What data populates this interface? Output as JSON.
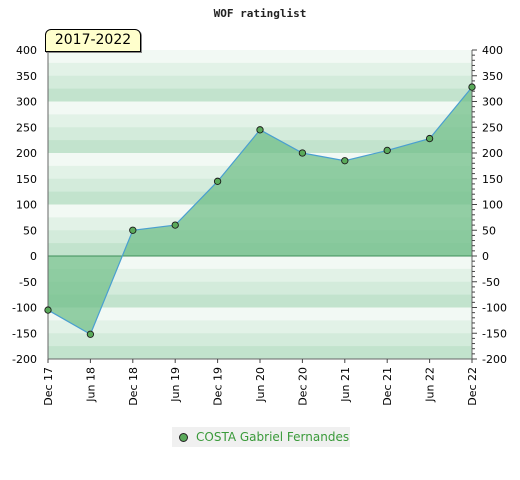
{
  "chart_data": {
    "type": "area",
    "title": "WOF ratinglist",
    "period_label": "2017-2022",
    "categories": [
      "Dec 17",
      "Jun 18",
      "Dec 18",
      "Jun 19",
      "Dec 19",
      "Jun 20",
      "Dec 20",
      "Jun 21",
      "Dec 21",
      "Jun 22",
      "Dec 22"
    ],
    "series": [
      {
        "name": "COSTA Gabriel Fernandes",
        "values": [
          -105,
          -152,
          50,
          60,
          145,
          245,
          200,
          185,
          205,
          228,
          328
        ]
      }
    ],
    "y_ticks": [
      400,
      350,
      300,
      250,
      200,
      150,
      100,
      50,
      0,
      -50,
      -100,
      -150,
      -200
    ],
    "ylim": [
      -200,
      400
    ],
    "axes": "left-and-right",
    "grid": false,
    "legend_position": "bottom-center",
    "colors": {
      "fill": "#72bf8a",
      "line": "#4a9fd0",
      "marker": "#5aaa5a",
      "legend_text": "#3a9a3a"
    }
  }
}
